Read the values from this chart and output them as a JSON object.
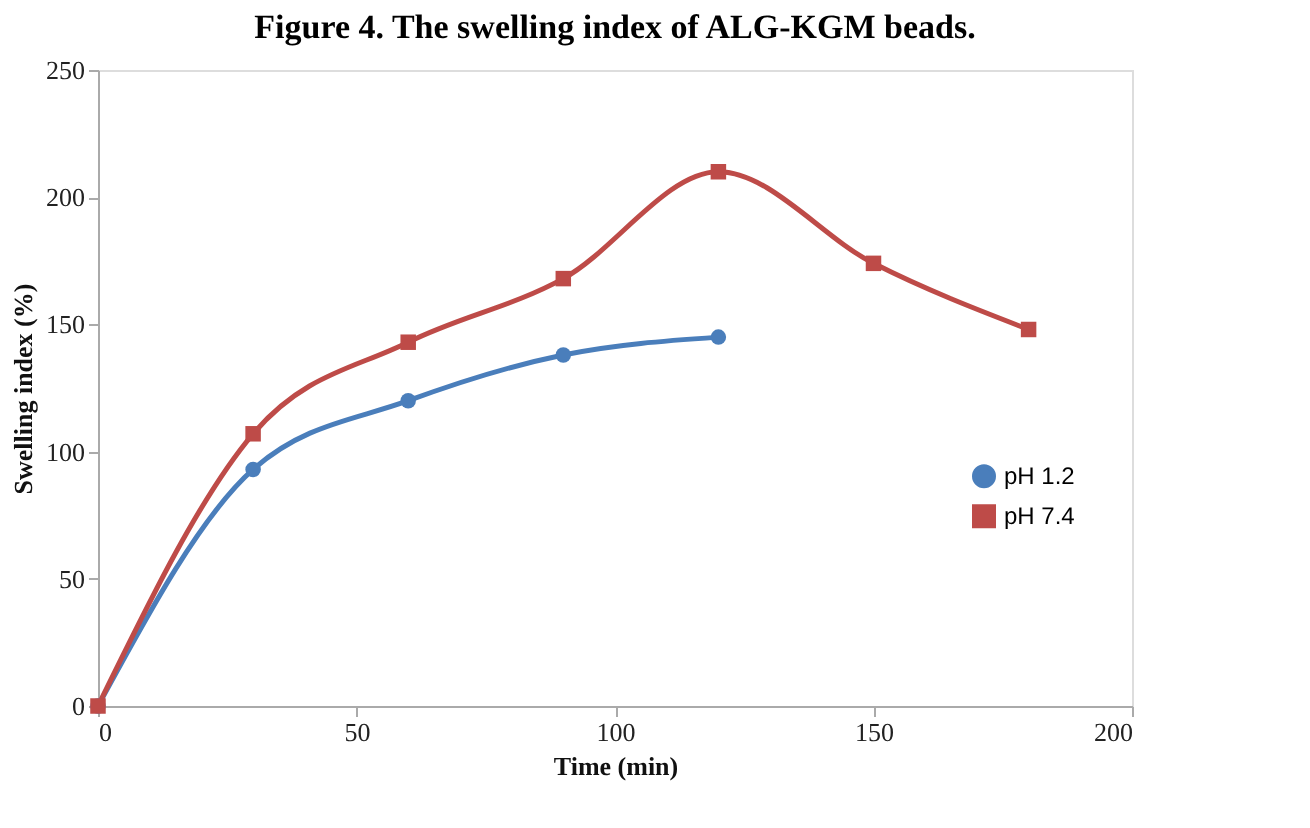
{
  "chart_data": {
    "type": "line",
    "title": "Figure 4. The swelling index of ALG-KGM beads.",
    "xlabel": "Time (min)",
    "ylabel": "Swelling index (%)",
    "xlim": [
      0,
      200
    ],
    "xticks": [
      0,
      50,
      100,
      150,
      200
    ],
    "ylim": [
      0,
      250
    ],
    "yticks": [
      0,
      50,
      100,
      150,
      200,
      250
    ],
    "grid": false,
    "legend": "right",
    "series": [
      {
        "name": "pH 1.2",
        "color": "#4a7ebb",
        "marker": "circle",
        "x": [
          0,
          30,
          60,
          90,
          120
        ],
        "values": [
          0,
          93,
          120,
          138,
          145
        ]
      },
      {
        "name": "pH 7.4",
        "color": "#be4b48",
        "marker": "square",
        "x": [
          0,
          30,
          60,
          90,
          120,
          150,
          180
        ],
        "values": [
          0,
          107,
          143,
          168,
          210,
          174,
          148
        ]
      }
    ]
  }
}
